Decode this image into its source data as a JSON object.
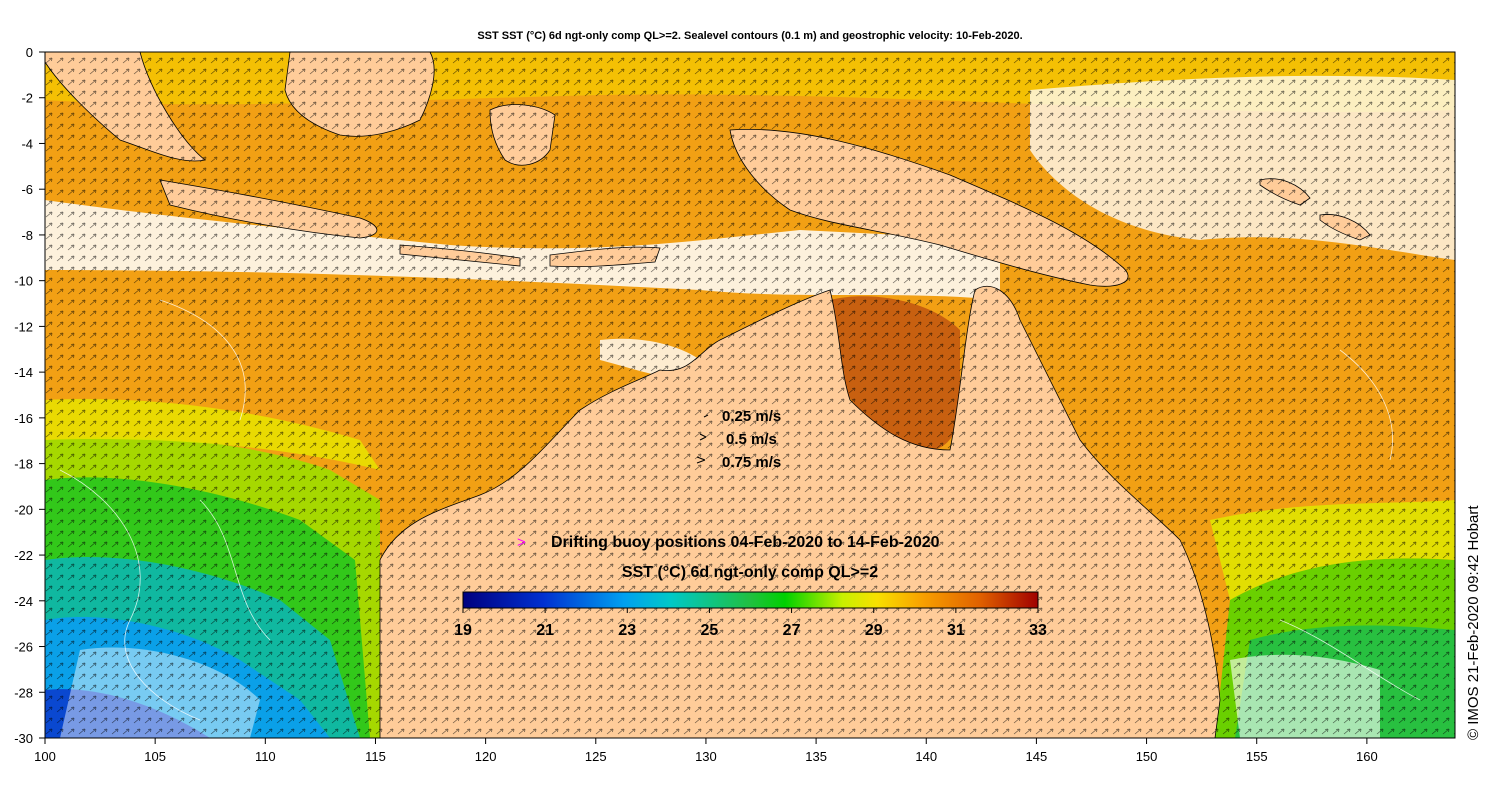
{
  "title": "SST SST (°C) 6d ngt-only comp QL>=2. Sealevel contours (0.1 m) and geostrophic velocity: 10-Feb-2020.",
  "map": {
    "lon_range": [
      100,
      164
    ],
    "lat_range": [
      -30,
      0
    ],
    "x_ticks": [
      "100",
      "105",
      "110",
      "115",
      "120",
      "125",
      "130",
      "135",
      "140",
      "145",
      "150",
      "155",
      "160"
    ],
    "y_ticks": [
      "0",
      "-2",
      "-4",
      "-6",
      "-8",
      "-10",
      "-12",
      "-14",
      "-16",
      "-18",
      "-20",
      "-22",
      "-24",
      "-26",
      "-28",
      "-30"
    ],
    "land_color": "#ffcc99",
    "cloud_color": "#ffffff"
  },
  "legend": {
    "velocity": [
      "0.25 m/s",
      "0.5 m/s",
      "0.75 m/s"
    ],
    "buoy_label": "Drifting buoy positions 04-Feb-2020 to 14-Feb-2020",
    "buoy_marker": ">",
    "buoy_color": "#ff00ff",
    "colorbar_title": "SST (°C) 6d ngt-only comp QL>=2",
    "colorbar_ticks": [
      "19",
      "21",
      "23",
      "25",
      "27",
      "29",
      "31",
      "33"
    ],
    "colorbar_range": [
      19,
      33
    ]
  },
  "credit": "© IMOS 21-Feb-2020 09:42 Hobart"
}
